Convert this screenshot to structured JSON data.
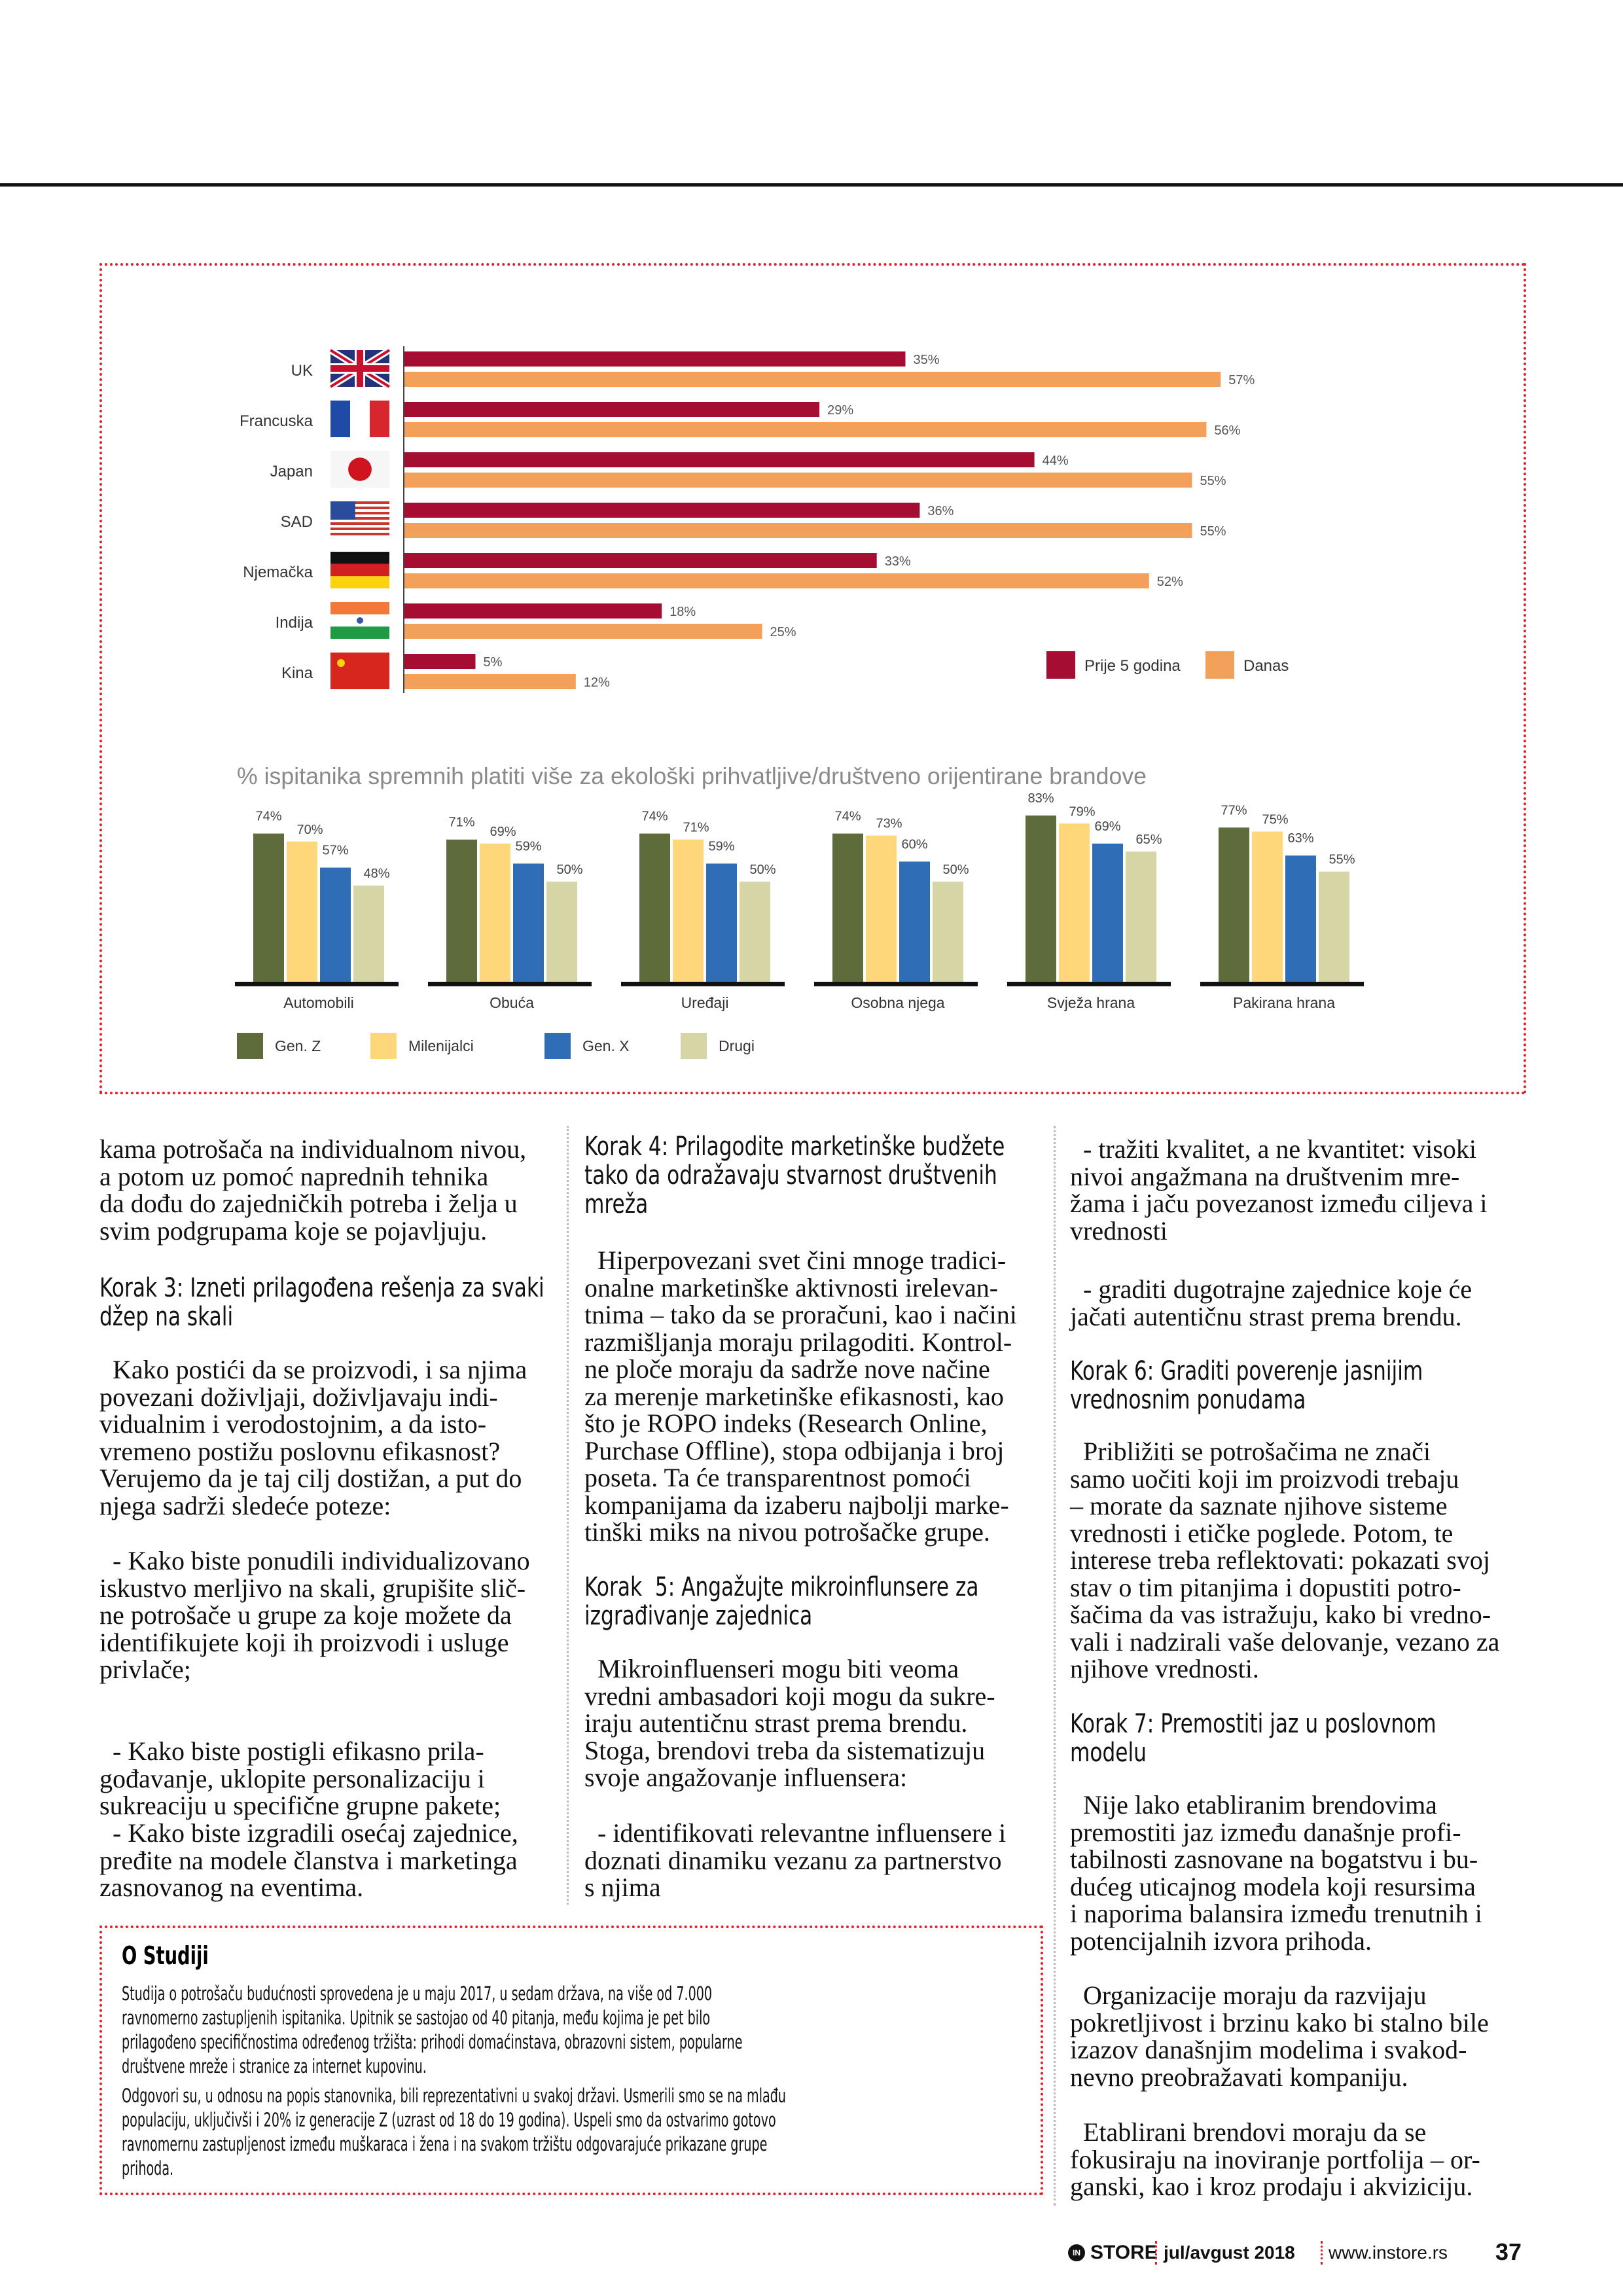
{
  "chart_data": [
    {
      "type": "bar",
      "orientation": "horizontal",
      "categories": [
        "UK",
        "Francuska",
        "Japan",
        "SAD",
        "Njemačka",
        "Indija",
        "Kina"
      ],
      "category_icons": [
        "flag-uk",
        "flag-france",
        "flag-japan",
        "flag-usa",
        "flag-germany",
        "flag-india",
        "flag-china"
      ],
      "series": [
        {
          "name": "Prije 5 godina",
          "color": "#a50d32",
          "values": [
            35,
            29,
            44,
            36,
            33,
            18,
            5
          ]
        },
        {
          "name": "Danas",
          "color": "#f3a05a",
          "values": [
            57,
            56,
            55,
            55,
            52,
            25,
            12
          ]
        }
      ],
      "value_suffix": "%",
      "legend": "bottom-right",
      "grid": false
    },
    {
      "type": "bar",
      "title": "% ispitanika spremnih platiti više za ekološki prihvatljive/društveno orijentirane brandove",
      "categories": [
        "Automobili",
        "Obuća",
        "Uređaji",
        "Osobna njega",
        "Svježa hrana",
        "Pakirana hrana"
      ],
      "series": [
        {
          "name": "Gen. Z",
          "color": "#5e6c3c",
          "values": [
            74,
            71,
            74,
            74,
            83,
            77
          ]
        },
        {
          "name": "Milenijalci",
          "color": "#fdd77a",
          "values": [
            70,
            69,
            71,
            73,
            79,
            75
          ]
        },
        {
          "name": "Gen. X",
          "color": "#2f6db6",
          "values": [
            57,
            59,
            59,
            60,
            69,
            63
          ]
        },
        {
          "name": "Drugi",
          "color": "#d5d5a6",
          "values": [
            48,
            50,
            50,
            50,
            65,
            55
          ]
        }
      ],
      "value_suffix": "%",
      "legend": "bottom-left",
      "grid": false
    }
  ],
  "col1": {
    "p1": "kama potrošača na individualnom nivou,\na potom uz pomoć naprednih tehnika\nda dođu do zajedničkih potreba i želja u\nsvim podgrupama koje se pojavljuju.",
    "h3": "Korak 3: Izneti prilagođena rešenja za svaki\ndžep na skali",
    "p2": "  Kako postići da se proizvodi, i sa njima\npovezani doživljaji, doživljavaju indi-\nvidualnim i verodostojnim, a da isto-\nvremeno postižu poslovnu efikasnost?\nVerujemo da je taj cilj dostižan, a put do\nnjega sadrži sledeće poteze:",
    "p3": "  - Kako biste ponudili individualizovano\niskustvo merljivo na skali, grupišite slič-\nne potrošače u grupe za koje možete da\nidentifikujete koji ih proizvodi i usluge\nprivlače;",
    "p4": "  - Kako biste postigli efikasno prila-\ngođavanje, uklopite personalizaciju i\nsukreaciju u specifične grupne pakete;",
    "p5": "  - Kako biste izgradili osećaj zajednice,\npređite na modele članstva i marketinga\nzasnovanog na eventima."
  },
  "col2": {
    "h4": "Korak 4: Prilagodite marketinške budžete\ntako da odražavaju stvarnost društvenih\nmreža",
    "p1": "  Hiperpovezani svet čini mnoge tradici-\nonalne marketinške aktivnosti irelevan-\ntnima – tako da se proračuni, kao i načini\nrazmišljanja moraju prilagoditi. Kontrol-\nne ploče moraju da sadrže nove načine\nza merenje marketinške efikasnosti, kao\nšto je ROPO indeks (Research Online,\nPurchase Offline), stopa odbijanja i broj\nposeta. Ta će transparentnost pomoći\nkompanijama da izaberu najbolji marke-\ntinški miks na nivou potrošačke grupe.",
    "h5": "Korak  5: Angažujte mikroinflunsere za\nizgrađivanje zajednica",
    "p2": "  Mikroinfluenseri mogu biti veoma\nvredni ambasadori koji mogu da sukre-\niraju autentičnu strast prema brendu.\nStoga, brendovi treba da sistematizuju\nsvoje angažovanje influensera:",
    "p3": "  - identifikovati relevantne influensere i\ndoznati dinamiku vezanu za partnerstvo\ns njima"
  },
  "col3": {
    "p1": "  - tražiti kvalitet, a ne kvantitet: visoki\nnivoi angažmana na društvenim mre-\nžama i jaču povezanost između ciljeva i\nvrednosti",
    "p2": "  - graditi dugotrajne zajednice koje će\njačati autentičnu strast prema brendu.",
    "h6": "Korak 6: Graditi poverenje jasnijim\nvrednosnim ponudama",
    "p3": "  Približiti se potrošačima ne znači\nsamo uočiti koji im proizvodi trebaju\n– morate da saznate njihove sisteme\nvrednosti i etičke poglede. Potom, te\ninterese treba reflektovati: pokazati svoj\nstav o tim pitanjima i dopustiti potro-\nšačima da vas istražuju, kako bi vredno-\nvali i nadzirali vaše delovanje, vezano za\nnjihove vrednosti.",
    "h7": "Korak 7: Premostiti jaz u poslovnom\nmodelu",
    "p4": "  Nije lako etabliranim brendovima\npremostiti jaz između današnje profi-\ntabilnosti zasnovane na bogatstvu i bu-\ndućeg uticajnog modela koji resursima\ni naporima balansira između trenutnih i\npotencijalnih izvora prihoda.",
    "p5": "  Organizacije moraju da razvijaju\npokretljivost i brzinu kako bi stalno bile\nizazov današnjim modelima i svakod-\nnevno preobražavati kompaniju.",
    "p6": "  Etablirani brendovi moraju da se\nfokusiraju na inoviranje portfolija – or-\nganski, kao i kroz prodaju i akviziciju."
  },
  "study": {
    "title": "O Studiji",
    "p1": "Studija o potrošaču budućnosti sprovedena je u maju 2017, u sedam država, na više od 7.000\nravnomerno zastupljenih ispitanika. Upitnik se sastojao od 40 pitanja, među kojima je pet bilo\nprilagođeno specifičnostima određenog tržišta: prihodi domaćinstava, obrazovni sistem, popularne\ndruštvene mreže i stranice za internet kupovinu.",
    "p2": "Odgovori su, u odnosu na popis stanovnika, bili reprezentativni u svakoj državi. Usmerili smo se na mlađu\npopulaciju, uključivši i 20% iz generacije Z (uzrast od 18 do 19 godina). Uspeli smo da ostvarimo gotovo\nravnomernu zastupljenost između muškaraca i žena i na svakom tržištu odgovarajuće prikazane grupe\nprihoda."
  },
  "footer": {
    "logo_mark": "IN",
    "logo": "STORE",
    "issue": "jul/avgust 2018",
    "url": "www.instore.rs",
    "page_number": "37"
  }
}
